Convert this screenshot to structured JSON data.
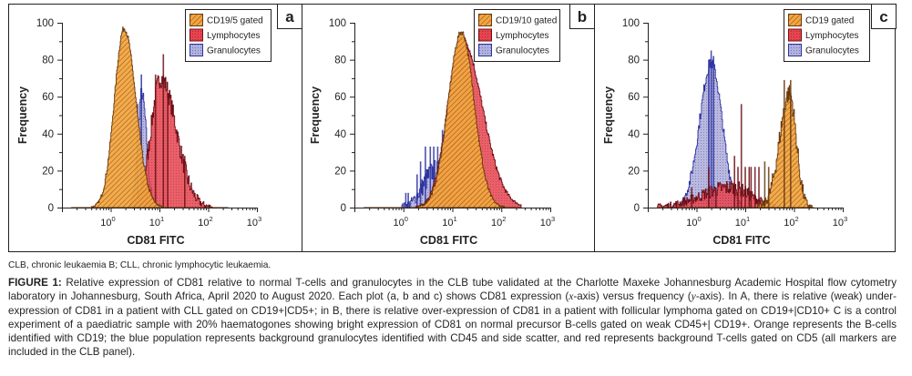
{
  "figure": {
    "footnote": "CLB, chronic leukaemia B; CLL, chronic lymphocytic leukaemia.",
    "caption_label": "FIGURE 1:",
    "caption_parts": [
      " Relative expression of CD81 relative to normal T-cells and granulocytes in the CLB tube validated at the Charlotte Maxeke Johannesburg Academic Hospital flow cytometry laboratory in Johannesburg, South Africa, April 2020 to August 2020. Each plot (a, b and c) shows CD81 expression (",
      "x",
      "-axis) versus frequency (",
      "y",
      "-axis). In A, there is relative (weak) under-expression of CD81 in a patient with CLL gated on CD19+|CD5+; in B, there is relative over-expression of CD81 in a patient with follicular lymphoma gated on CD19+|CD10+ C is a control experiment of a paediatric sample with 20% haematogones showing bright expression of CD81 on normal precursor B-cells gated on weak CD45+| CD19+. Orange represents the B-cells identified with CD19; the blue population represents background granulocytes identified with CD45 and side scatter, and red represents background T-cells gated on CD5 (all markers are included in the CLB panel)."
    ]
  },
  "colors": {
    "cd19_fill": "#f4a640",
    "cd19_stroke": "#6b3a0e",
    "cd19_overlap_fill": "#e9731f",
    "lymph_fill": "#e8434f",
    "lymph_stroke": "#6e0f18",
    "gran_fill": "#a9a9d6",
    "gran_stroke": "#2e33a0"
  },
  "chart_data": [
    {
      "panel_label": "a",
      "type": "area",
      "xlabel": "CD81 FITC",
      "ylabel": "Frequency",
      "xscale": "log10",
      "xlim_log10": [
        -1,
        3
      ],
      "ylim": [
        0,
        100
      ],
      "yticks": [
        0,
        20,
        40,
        60,
        80,
        100
      ],
      "xticks": [
        {
          "base": "10",
          "exp": "0"
        },
        {
          "base": "10",
          "exp": "1"
        },
        {
          "base": "10",
          "exp": "2"
        },
        {
          "base": "10",
          "exp": "3"
        }
      ],
      "legend_position": "top-right",
      "series": [
        {
          "name": "CD19/5 gated",
          "key": "cd19",
          "peak_log10": 0.27,
          "peak_height": 97,
          "sd_left": 0.2,
          "sd_right": 0.24,
          "noise": 3
        },
        {
          "name": "Lymphocytes",
          "key": "lymph",
          "peak_log10": 1.02,
          "peak_height": 70,
          "sd_left": 0.2,
          "sd_right": 0.32,
          "noise": 10,
          "spikes": [
            [
              1.08,
              83
            ],
            [
              0.92,
              72
            ],
            [
              1.17,
              62
            ],
            [
              1.52,
              28
            ]
          ]
        },
        {
          "name": "Granulocytes",
          "key": "gran",
          "peak_log10": 0.63,
          "peak_height": 62,
          "sd_left": 0.08,
          "sd_right": 0.1,
          "noise": 8,
          "spikes": [
            [
              0.63,
              72
            ],
            [
              0.55,
              56
            ]
          ]
        }
      ]
    },
    {
      "panel_label": "b",
      "type": "area",
      "xlabel": "CD81 FITC",
      "ylabel": "Frequency",
      "xscale": "log10",
      "xlim_log10": [
        -1,
        3
      ],
      "ylim": [
        0,
        100
      ],
      "yticks": [
        0,
        20,
        40,
        60,
        80,
        100
      ],
      "xticks": [
        {
          "base": "10",
          "exp": "0"
        },
        {
          "base": "10",
          "exp": "1"
        },
        {
          "base": "10",
          "exp": "2"
        },
        {
          "base": "10",
          "exp": "3"
        }
      ],
      "legend_position": "top-right",
      "series": [
        {
          "name": "CD19/10 gated",
          "key": "cd19",
          "peak_log10": 1.18,
          "peak_height": 95,
          "sd_left": 0.27,
          "sd_right": 0.26,
          "noise": 3
        },
        {
          "name": "Lymphocytes",
          "key": "lymph",
          "peak_log10": 1.18,
          "peak_height": 92,
          "sd_left": 0.28,
          "sd_right": 0.42,
          "noise": 3,
          "shoulder": [
            1.62,
            36,
            0.17
          ]
        },
        {
          "name": "Granulocytes",
          "key": "gran",
          "peak_log10": 0.65,
          "peak_height": 20,
          "sd_left": 0.25,
          "sd_right": 0.2,
          "noise": 12,
          "spikes": [
            [
              0.05,
              8
            ],
            [
              0.1,
              8
            ],
            [
              0.35,
              25
            ],
            [
              0.45,
              33
            ],
            [
              0.55,
              33
            ],
            [
              0.62,
              33
            ],
            [
              0.7,
              33
            ],
            [
              0.8,
              42
            ],
            [
              0.28,
              18
            ]
          ]
        }
      ]
    },
    {
      "panel_label": "c",
      "type": "area",
      "xlabel": "CD81 FITC",
      "ylabel": "Frequency",
      "xscale": "log10",
      "xlim_log10": [
        -1,
        3
      ],
      "ylim": [
        0,
        100
      ],
      "yticks": [
        0,
        20,
        40,
        60,
        80,
        100
      ],
      "xticks": [
        {
          "base": "10",
          "exp": "0"
        },
        {
          "base": "10",
          "exp": "1"
        },
        {
          "base": "10",
          "exp": "2"
        },
        {
          "base": "10",
          "exp": "3"
        }
      ],
      "legend_position": "top-right",
      "series": [
        {
          "name": "CD19 gated",
          "key": "cd19",
          "peak_log10": 1.9,
          "peak_height": 62,
          "sd_left": 0.2,
          "sd_right": 0.14,
          "noise": 10,
          "spikes": [
            [
              1.8,
              69
            ],
            [
              1.93,
              69
            ],
            [
              1.4,
              25
            ],
            [
              1.48,
              22
            ]
          ]
        },
        {
          "name": "Lymphocytes",
          "key": "lymph",
          "peak_log10": 0.7,
          "peak_height": 11,
          "sd_left": 0.6,
          "sd_right": 0.4,
          "noise": 10,
          "spikes": [
            [
              0.92,
              56
            ],
            [
              0.25,
              22
            ],
            [
              0.78,
              28
            ],
            [
              1.0,
              22
            ],
            [
              1.08,
              22
            ],
            [
              1.12,
              22
            ],
            [
              1.2,
              22
            ],
            [
              1.28,
              22
            ],
            [
              0.4,
              11
            ],
            [
              -0.1,
              11
            ],
            [
              0.85,
              22
            ]
          ]
        },
        {
          "name": "Granulocytes",
          "key": "gran",
          "peak_log10": 0.3,
          "peak_height": 78,
          "sd_left": 0.24,
          "sd_right": 0.22,
          "noise": 6,
          "spikes": [
            [
              0.3,
              85
            ],
            [
              0.25,
              80
            ],
            [
              0.35,
              82
            ]
          ]
        }
      ]
    }
  ]
}
